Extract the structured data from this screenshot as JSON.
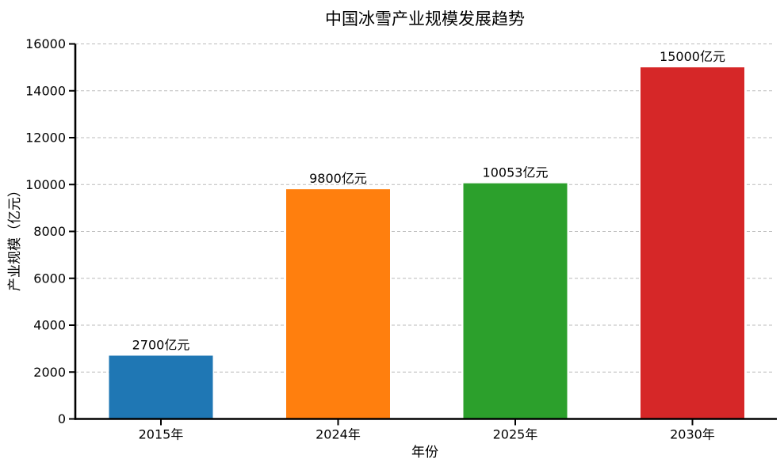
{
  "page": {
    "background": "#ffffff"
  },
  "chart_data": {
    "type": "bar",
    "title": "中国冰雪产业规模发展趋势",
    "xlabel": "年份",
    "ylabel": "产业规模（亿元）",
    "categories": [
      "2015年",
      "2024年",
      "2025年",
      "2030年"
    ],
    "values": [
      2700,
      9800,
      10053,
      15000
    ],
    "bar_labels": [
      "2700亿元",
      "9800亿元",
      "10053亿元",
      "15000亿元"
    ],
    "bar_colors": [
      "#1f77b4",
      "#ff7f0e",
      "#2ca02c",
      "#d62728"
    ],
    "ylim": [
      0,
      16000
    ],
    "yticks": [
      0,
      2000,
      4000,
      6000,
      8000,
      10000,
      12000,
      14000,
      16000
    ],
    "grid": {
      "axis": "y",
      "style": "dashed",
      "color": "#bbbbbb",
      "visible": true
    },
    "legend": "none",
    "axis_color": "#000000",
    "text_color": "#000000"
  }
}
